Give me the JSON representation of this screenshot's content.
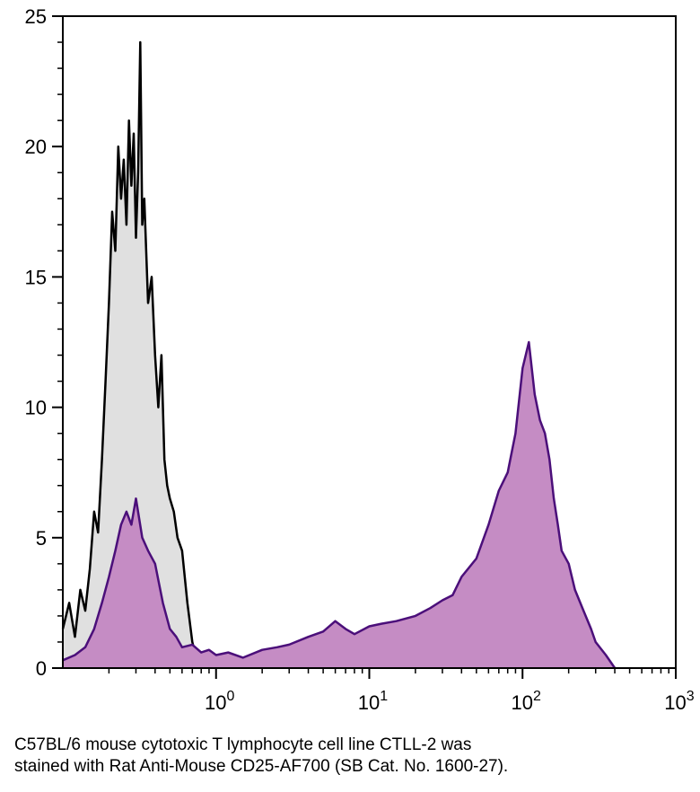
{
  "caption": {
    "line1": "C57BL/6 mouse cytotoxic T lymphocyte cell line CTLL-2 was",
    "line2": "stained with Rat Anti-Mouse CD25-AF700 (SB Cat. No. 1600-27)."
  },
  "chart_data": {
    "type": "area",
    "title": "",
    "xlabel": "",
    "ylabel": "",
    "x_scale": "log",
    "xlim": [
      0.1,
      1000
    ],
    "ylim": [
      0,
      25
    ],
    "grid": false,
    "legend": "none",
    "x_ticks": [
      {
        "value": 1,
        "base": "10",
        "exp": "0"
      },
      {
        "value": 10,
        "base": "10",
        "exp": "1"
      },
      {
        "value": 100,
        "base": "10",
        "exp": "2"
      },
      {
        "value": 1000,
        "base": "10",
        "exp": "3"
      }
    ],
    "y_ticks": [
      "0",
      "5",
      "10",
      "15",
      "20",
      "25"
    ],
    "series": [
      {
        "fill": "#e0e0e0",
        "stroke": "#000000",
        "x": [
          0.1,
          0.11,
          0.12,
          0.13,
          0.14,
          0.15,
          0.16,
          0.17,
          0.18,
          0.19,
          0.2,
          0.21,
          0.22,
          0.23,
          0.24,
          0.25,
          0.26,
          0.27,
          0.28,
          0.29,
          0.3,
          0.31,
          0.32,
          0.33,
          0.34,
          0.35,
          0.36,
          0.38,
          0.4,
          0.42,
          0.44,
          0.46,
          0.48,
          0.5,
          0.53,
          0.56,
          0.6,
          0.65,
          0.7,
          0.75,
          0.8
        ],
        "y": [
          1.5,
          2.5,
          1.2,
          3.0,
          2.2,
          3.8,
          6.0,
          5.2,
          8.0,
          11.0,
          14.0,
          17.5,
          16.0,
          20.0,
          18.0,
          19.5,
          17.0,
          21.0,
          18.5,
          20.5,
          16.5,
          19.0,
          24.0,
          17.0,
          18.0,
          16.0,
          14.0,
          15.0,
          12.0,
          10.0,
          12.0,
          8.0,
          7.0,
          6.5,
          6.0,
          5.0,
          4.5,
          2.5,
          1.0,
          0.3,
          0.0
        ]
      },
      {
        "fill": "#c58cc4",
        "stroke": "#4b0f7a",
        "x": [
          0.1,
          0.12,
          0.14,
          0.16,
          0.18,
          0.2,
          0.22,
          0.24,
          0.26,
          0.28,
          0.3,
          0.33,
          0.36,
          0.4,
          0.45,
          0.5,
          0.55,
          0.6,
          0.7,
          0.8,
          0.9,
          1.0,
          1.2,
          1.5,
          2.0,
          2.5,
          3.0,
          4.0,
          5.0,
          6.0,
          7.0,
          8.0,
          10,
          12,
          15,
          20,
          25,
          30,
          35,
          40,
          50,
          60,
          70,
          80,
          90,
          100,
          110,
          120,
          130,
          140,
          150,
          160,
          170,
          180,
          200,
          220,
          250,
          280,
          300,
          350,
          400
        ],
        "y": [
          0.3,
          0.5,
          0.8,
          1.5,
          2.5,
          3.5,
          4.5,
          5.5,
          6.0,
          5.5,
          6.5,
          5.0,
          4.5,
          4.0,
          2.5,
          1.5,
          1.2,
          0.8,
          0.9,
          0.6,
          0.7,
          0.5,
          0.6,
          0.4,
          0.7,
          0.8,
          0.9,
          1.2,
          1.4,
          1.8,
          1.5,
          1.3,
          1.6,
          1.7,
          1.8,
          2.0,
          2.3,
          2.6,
          2.8,
          3.5,
          4.2,
          5.5,
          6.8,
          7.5,
          9.0,
          11.5,
          12.5,
          10.5,
          9.5,
          9.0,
          8.0,
          6.5,
          5.5,
          4.5,
          4.0,
          3.0,
          2.2,
          1.5,
          1.0,
          0.5,
          0.0
        ]
      }
    ]
  }
}
